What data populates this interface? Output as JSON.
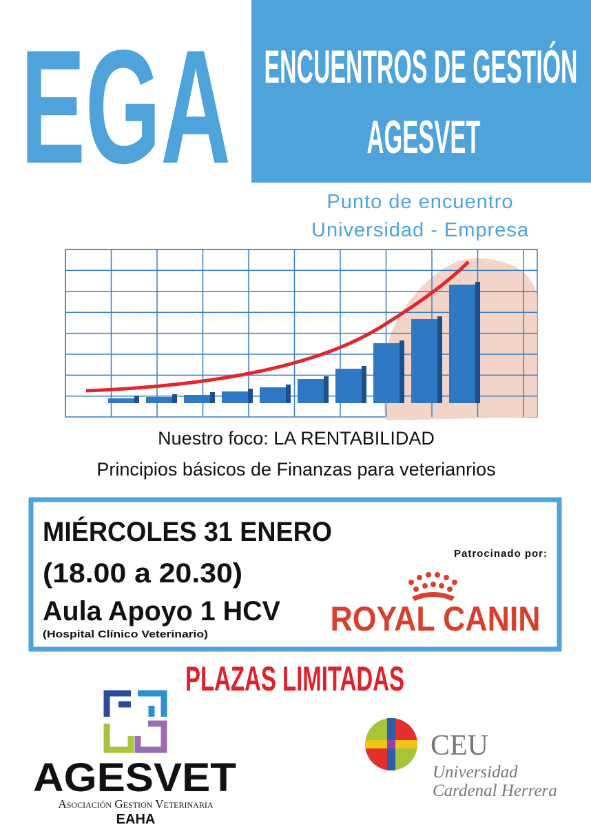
{
  "header": {
    "acronym": "EGA",
    "title_lines": [
      "ENCUENTROS DE GESTIÓN",
      "AGESVET"
    ]
  },
  "subtitle_lines": [
    "Punto de encuentro",
    "Universidad - Empresa"
  ],
  "focus_lines": [
    "Nuestro foco: LA RENTABILIDAD",
    "Principios básicos de Finanzas para veterianrios"
  ],
  "event": {
    "date": "MIÉRCOLES 31 ENERO",
    "time": "(18.00 a 20.30)",
    "place": "Aula Apoyo 1 HCV",
    "place_note": "(Hospital Clínico Veterinario)"
  },
  "sponsor": {
    "label": "Patrocinado por:",
    "name": "ROYAL CANIN"
  },
  "notice": "PLAZAS LIMITADAS",
  "organizer": {
    "name": "AGESVET",
    "full_name": "Asociación Gestion Veterinaria",
    "code": "EAHA"
  },
  "university": {
    "name": "CEU",
    "lines": [
      "Universidad",
      "Cardenal Herrera"
    ]
  }
}
